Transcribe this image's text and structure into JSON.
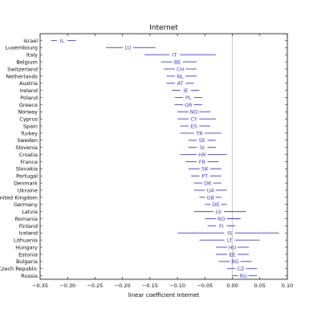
{
  "chart_data": {
    "type": "scatter",
    "title": "Internet",
    "xlabel": "linear coefficient Internet",
    "ylabel": "",
    "xlim": [
      -0.35,
      0.1
    ],
    "xticks": [
      -0.35,
      -0.3,
      -0.25,
      -0.2,
      -0.15,
      -0.1,
      -0.05,
      0.0,
      0.05,
      0.1
    ],
    "xtick_labels": [
      "−0.35",
      "−0.30",
      "−0.25",
      "−0.20",
      "−0.15",
      "−0.10",
      "−0.05",
      "0.00",
      "0.05",
      "0.10"
    ],
    "grid": false,
    "reference_line_x": 0.0,
    "color": "#3333cc",
    "countries": [
      {
        "country": "Israel",
        "code": "IL",
        "coef": -0.31,
        "low": -0.33,
        "high": -0.285
      },
      {
        "country": "Luxembourg",
        "code": "LU",
        "coef": -0.19,
        "low": -0.23,
        "high": -0.14
      },
      {
        "country": "Italy",
        "code": "IT",
        "coef": -0.105,
        "low": -0.16,
        "high": -0.03
      },
      {
        "country": "Belgium",
        "code": "BE",
        "coef": -0.1,
        "low": -0.13,
        "high": -0.065
      },
      {
        "country": "Switzerland",
        "code": "CH",
        "coef": -0.095,
        "low": -0.125,
        "high": -0.065
      },
      {
        "country": "Netherlands",
        "code": "NL",
        "coef": -0.095,
        "low": -0.12,
        "high": -0.065
      },
      {
        "country": "Austria",
        "code": "AT",
        "coef": -0.095,
        "low": -0.12,
        "high": -0.07
      },
      {
        "country": "Ireland",
        "code": "IE",
        "coef": -0.085,
        "low": -0.11,
        "high": -0.06
      },
      {
        "country": "Poland",
        "code": "PL",
        "coef": -0.08,
        "low": -0.105,
        "high": -0.055
      },
      {
        "country": "Greece",
        "code": "GR",
        "coef": -0.08,
        "low": -0.105,
        "high": -0.055
      },
      {
        "country": "Norway",
        "code": "NO",
        "coef": -0.07,
        "low": -0.1,
        "high": -0.04
      },
      {
        "country": "Cyprus",
        "code": "CY",
        "coef": -0.07,
        "low": -0.1,
        "high": -0.03
      },
      {
        "country": "Spain",
        "code": "ES",
        "coef": -0.07,
        "low": -0.095,
        "high": -0.04
      },
      {
        "country": "Turkey",
        "code": "TR",
        "coef": -0.06,
        "low": -0.095,
        "high": -0.02
      },
      {
        "country": "Sweden",
        "code": "SE",
        "coef": -0.055,
        "low": -0.08,
        "high": -0.03
      },
      {
        "country": "Slovenia",
        "code": "SI",
        "coef": -0.055,
        "low": -0.08,
        "high": -0.03
      },
      {
        "country": "Croatia",
        "code": "HR",
        "coef": -0.055,
        "low": -0.095,
        "high": -0.01
      },
      {
        "country": "France",
        "code": "FR",
        "coef": -0.055,
        "low": -0.085,
        "high": -0.025
      },
      {
        "country": "Slovakia",
        "code": "SK",
        "coef": -0.05,
        "low": -0.08,
        "high": -0.02
      },
      {
        "country": "Portugal",
        "code": "PT",
        "coef": -0.05,
        "low": -0.075,
        "high": -0.02
      },
      {
        "country": "Denmark",
        "code": "DK",
        "coef": -0.045,
        "low": -0.07,
        "high": -0.02
      },
      {
        "country": "Ukraine",
        "code": "UA",
        "coef": -0.04,
        "low": -0.07,
        "high": -0.01
      },
      {
        "country": "United Kingdom",
        "code": "GB",
        "coef": -0.04,
        "low": -0.06,
        "high": -0.02
      },
      {
        "country": "Germany",
        "code": "DE",
        "coef": -0.03,
        "low": -0.05,
        "high": -0.01
      },
      {
        "country": "Latvia",
        "code": "LV",
        "coef": -0.025,
        "low": -0.07,
        "high": 0.025
      },
      {
        "country": "Romania",
        "code": "RO",
        "coef": -0.02,
        "low": -0.05,
        "high": 0.015
      },
      {
        "country": "Finland",
        "code": "FI",
        "coef": -0.02,
        "low": -0.045,
        "high": 0.005
      },
      {
        "country": "Iceland",
        "code": "IS",
        "coef": -0.005,
        "low": -0.1,
        "high": 0.085
      },
      {
        "country": "Lithuania",
        "code": "LT",
        "coef": -0.005,
        "low": -0.06,
        "high": 0.05
      },
      {
        "country": "Hungary",
        "code": "HU",
        "coef": 0.0,
        "low": -0.03,
        "high": 0.03
      },
      {
        "country": "Estonia",
        "code": "EE",
        "coef": 0.0,
        "low": -0.03,
        "high": 0.03
      },
      {
        "country": "Bulgaria",
        "code": "BG",
        "coef": 0.005,
        "low": -0.025,
        "high": 0.035
      },
      {
        "country": "Czech Republic",
        "code": "CZ",
        "coef": 0.015,
        "low": -0.01,
        "high": 0.045
      },
      {
        "country": "Russia",
        "code": "RU",
        "coef": 0.02,
        "low": 0.0,
        "high": 0.045
      }
    ]
  }
}
